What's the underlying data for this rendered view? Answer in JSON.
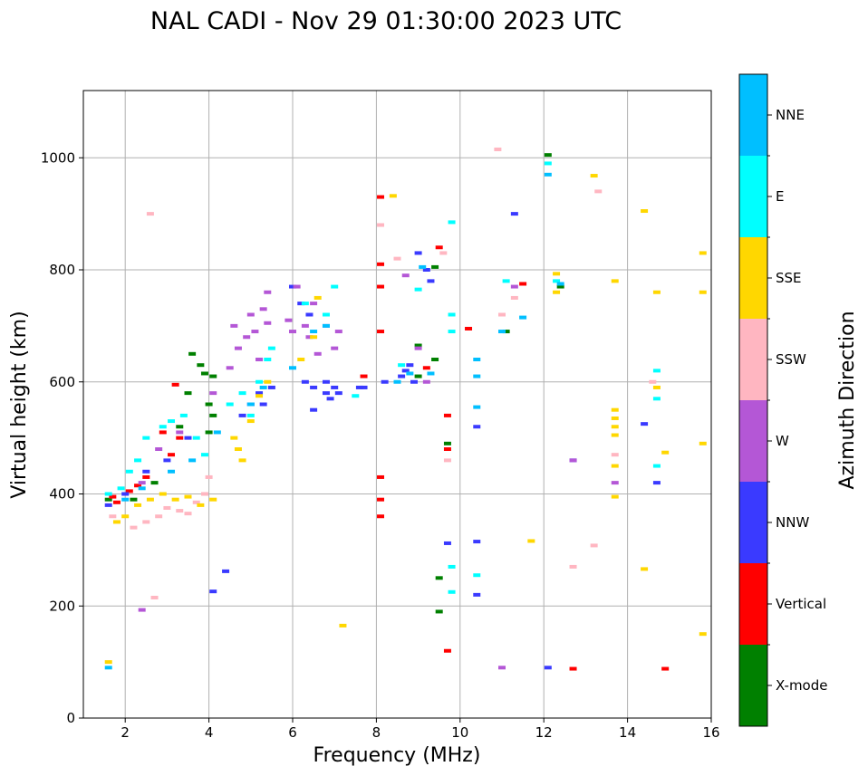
{
  "chart_data": {
    "type": "scatter",
    "title": "NAL CADI - Nov 29 01:30:00 2023 UTC",
    "xlabel": "Frequency (MHz)",
    "ylabel": "Virtual height (km)",
    "xlim": [
      1,
      16
    ],
    "ylim": [
      0,
      1120
    ],
    "xticks": [
      2,
      4,
      6,
      8,
      10,
      12,
      14,
      16
    ],
    "yticks": [
      0,
      200,
      400,
      600,
      800,
      1000
    ],
    "grid": true,
    "colorbar": {
      "label": "Azimuth Direction",
      "categories": [
        {
          "name": "X-mode",
          "color": "#008000"
        },
        {
          "name": "Vertical",
          "color": "#ff0000"
        },
        {
          "name": "NNW",
          "color": "#3a3aff"
        },
        {
          "name": "W",
          "color": "#b457d6"
        },
        {
          "name": "SSW",
          "color": "#ffb6c1"
        },
        {
          "name": "SSE",
          "color": "#ffd700"
        },
        {
          "name": "E",
          "color": "#00ffff"
        },
        {
          "name": "NNE",
          "color": "#00bfff"
        }
      ]
    },
    "series": [
      {
        "name": "X-mode",
        "points": [
          [
            2.2,
            390
          ],
          [
            2.7,
            420
          ],
          [
            3.3,
            520
          ],
          [
            3.5,
            580
          ],
          [
            3.6,
            650
          ],
          [
            3.8,
            630
          ],
          [
            3.9,
            615
          ],
          [
            4.0,
            560
          ],
          [
            4.1,
            540
          ],
          [
            4.0,
            510
          ],
          [
            4.1,
            610
          ],
          [
            9.0,
            665
          ],
          [
            9.0,
            610
          ],
          [
            9.4,
            640
          ],
          [
            9.4,
            805
          ],
          [
            9.7,
            490
          ],
          [
            9.5,
            250
          ],
          [
            9.5,
            190
          ],
          [
            11.1,
            690
          ],
          [
            12.4,
            770
          ],
          [
            12.1,
            1005
          ],
          [
            1.6,
            390
          ]
        ]
      },
      {
        "name": "Vertical",
        "points": [
          [
            1.7,
            395
          ],
          [
            1.8,
            385
          ],
          [
            2.1,
            405
          ],
          [
            2.3,
            415
          ],
          [
            2.5,
            430
          ],
          [
            2.9,
            510
          ],
          [
            3.1,
            470
          ],
          [
            3.2,
            595
          ],
          [
            3.3,
            500
          ],
          [
            8.1,
            930
          ],
          [
            8.1,
            810
          ],
          [
            8.1,
            770
          ],
          [
            8.1,
            690
          ],
          [
            8.1,
            430
          ],
          [
            8.1,
            390
          ],
          [
            8.1,
            360
          ],
          [
            9.2,
            625
          ],
          [
            9.5,
            840
          ],
          [
            9.7,
            540
          ],
          [
            9.7,
            480
          ],
          [
            9.7,
            120
          ],
          [
            10.2,
            695
          ],
          [
            11.5,
            775
          ],
          [
            12.7,
            88
          ],
          [
            14.9,
            88
          ],
          [
            7.7,
            610
          ]
        ]
      },
      {
        "name": "NNW",
        "points": [
          [
            1.6,
            380
          ],
          [
            2.0,
            400
          ],
          [
            2.5,
            440
          ],
          [
            3.0,
            460
          ],
          [
            3.5,
            500
          ],
          [
            4.4,
            262
          ],
          [
            4.1,
            226
          ],
          [
            4.8,
            540
          ],
          [
            5.0,
            560
          ],
          [
            5.2,
            580
          ],
          [
            5.3,
            560
          ],
          [
            5.5,
            590
          ],
          [
            6.0,
            770
          ],
          [
            6.2,
            740
          ],
          [
            6.3,
            600
          ],
          [
            6.4,
            720
          ],
          [
            6.5,
            590
          ],
          [
            6.5,
            550
          ],
          [
            6.8,
            600
          ],
          [
            6.8,
            580
          ],
          [
            6.9,
            570
          ],
          [
            7.0,
            590
          ],
          [
            7.1,
            580
          ],
          [
            7.6,
            590
          ],
          [
            7.7,
            590
          ],
          [
            8.2,
            600
          ],
          [
            8.6,
            610
          ],
          [
            8.7,
            620
          ],
          [
            8.8,
            630
          ],
          [
            8.9,
            600
          ],
          [
            9.0,
            830
          ],
          [
            9.2,
            800
          ],
          [
            9.3,
            780
          ],
          [
            9.7,
            312
          ],
          [
            10.4,
            315
          ],
          [
            10.4,
            520
          ],
          [
            10.4,
            220
          ],
          [
            11.3,
            900
          ],
          [
            12.1,
            90
          ],
          [
            12.7,
            460
          ],
          [
            14.4,
            525
          ],
          [
            14.7,
            420
          ]
        ]
      },
      {
        "name": "W",
        "points": [
          [
            2.4,
            420
          ],
          [
            2.8,
            480
          ],
          [
            3.3,
            510
          ],
          [
            4.1,
            580
          ],
          [
            4.5,
            625
          ],
          [
            4.6,
            700
          ],
          [
            4.7,
            660
          ],
          [
            4.9,
            680
          ],
          [
            5.0,
            720
          ],
          [
            5.1,
            690
          ],
          [
            5.2,
            640
          ],
          [
            5.3,
            730
          ],
          [
            5.4,
            705
          ],
          [
            5.4,
            760
          ],
          [
            5.9,
            710
          ],
          [
            6.0,
            690
          ],
          [
            6.1,
            770
          ],
          [
            6.3,
            700
          ],
          [
            6.4,
            680
          ],
          [
            6.5,
            740
          ],
          [
            6.6,
            650
          ],
          [
            6.8,
            700
          ],
          [
            7.0,
            660
          ],
          [
            7.1,
            690
          ],
          [
            8.7,
            790
          ],
          [
            9.0,
            660
          ],
          [
            9.2,
            600
          ],
          [
            11.3,
            770
          ],
          [
            11.0,
            90
          ],
          [
            12.7,
            460
          ],
          [
            13.7,
            420
          ],
          [
            2.4,
            193
          ]
        ]
      },
      {
        "name": "SSW",
        "points": [
          [
            1.7,
            360
          ],
          [
            2.2,
            340
          ],
          [
            2.5,
            350
          ],
          [
            2.8,
            360
          ],
          [
            3.0,
            375
          ],
          [
            3.3,
            370
          ],
          [
            3.5,
            365
          ],
          [
            3.7,
            385
          ],
          [
            3.9,
            400
          ],
          [
            4.0,
            430
          ],
          [
            2.6,
            900
          ],
          [
            8.1,
            880
          ],
          [
            8.5,
            820
          ],
          [
            9.6,
            830
          ],
          [
            10.9,
            1015
          ],
          [
            11.0,
            720
          ],
          [
            11.3,
            750
          ],
          [
            12.7,
            270
          ],
          [
            13.3,
            940
          ],
          [
            13.2,
            308
          ],
          [
            13.7,
            470
          ],
          [
            14.6,
            600
          ],
          [
            2.7,
            215
          ],
          [
            9.7,
            460
          ]
        ]
      },
      {
        "name": "SSE",
        "points": [
          [
            1.6,
            100
          ],
          [
            1.8,
            350
          ],
          [
            2.0,
            360
          ],
          [
            2.3,
            380
          ],
          [
            2.6,
            390
          ],
          [
            2.9,
            400
          ],
          [
            3.2,
            390
          ],
          [
            3.5,
            395
          ],
          [
            3.8,
            380
          ],
          [
            4.1,
            390
          ],
          [
            4.6,
            500
          ],
          [
            4.7,
            480
          ],
          [
            4.8,
            460
          ],
          [
            5.0,
            530
          ],
          [
            5.2,
            575
          ],
          [
            5.4,
            600
          ],
          [
            6.2,
            640
          ],
          [
            6.5,
            680
          ],
          [
            6.6,
            750
          ],
          [
            7.2,
            165
          ],
          [
            8.4,
            932
          ],
          [
            11.7,
            316
          ],
          [
            12.3,
            793
          ],
          [
            12.3,
            760
          ],
          [
            13.2,
            968
          ],
          [
            13.7,
            780
          ],
          [
            13.7,
            550
          ],
          [
            13.7,
            535
          ],
          [
            13.7,
            520
          ],
          [
            13.7,
            505
          ],
          [
            13.7,
            450
          ],
          [
            13.7,
            395
          ],
          [
            14.4,
            905
          ],
          [
            14.4,
            266
          ],
          [
            14.7,
            760
          ],
          [
            14.7,
            590
          ],
          [
            14.9,
            474
          ],
          [
            15.8,
            830
          ],
          [
            15.8,
            760
          ],
          [
            15.8,
            490
          ],
          [
            15.8,
            150
          ]
        ]
      },
      {
        "name": "E",
        "points": [
          [
            1.6,
            400
          ],
          [
            1.9,
            410
          ],
          [
            2.1,
            440
          ],
          [
            2.3,
            460
          ],
          [
            2.5,
            500
          ],
          [
            2.9,
            520
          ],
          [
            3.1,
            530
          ],
          [
            3.4,
            540
          ],
          [
            3.7,
            500
          ],
          [
            3.9,
            470
          ],
          [
            4.5,
            560
          ],
          [
            4.8,
            580
          ],
          [
            5.0,
            540
          ],
          [
            5.2,
            600
          ],
          [
            5.4,
            640
          ],
          [
            5.5,
            660
          ],
          [
            6.3,
            740
          ],
          [
            6.8,
            720
          ],
          [
            7.0,
            770
          ],
          [
            7.5,
            575
          ],
          [
            8.6,
            630
          ],
          [
            9.0,
            765
          ],
          [
            9.8,
            885
          ],
          [
            9.8,
            720
          ],
          [
            9.8,
            690
          ],
          [
            9.8,
            270
          ],
          [
            9.8,
            225
          ],
          [
            10.4,
            255
          ],
          [
            11.1,
            780
          ],
          [
            12.1,
            990
          ],
          [
            12.3,
            780
          ],
          [
            14.7,
            570
          ],
          [
            14.7,
            450
          ],
          [
            14.7,
            620
          ]
        ]
      },
      {
        "name": "NNE",
        "points": [
          [
            1.6,
            90
          ],
          [
            2.0,
            390
          ],
          [
            2.4,
            410
          ],
          [
            3.1,
            440
          ],
          [
            3.6,
            460
          ],
          [
            4.2,
            510
          ],
          [
            5.0,
            560
          ],
          [
            5.3,
            590
          ],
          [
            6.0,
            625
          ],
          [
            6.5,
            690
          ],
          [
            6.8,
            700
          ],
          [
            8.5,
            600
          ],
          [
            8.8,
            615
          ],
          [
            9.1,
            805
          ],
          [
            9.3,
            615
          ],
          [
            10.4,
            640
          ],
          [
            10.4,
            610
          ],
          [
            10.4,
            555
          ],
          [
            11.0,
            690
          ],
          [
            11.5,
            715
          ],
          [
            12.1,
            970
          ],
          [
            12.4,
            775
          ]
        ]
      }
    ]
  }
}
